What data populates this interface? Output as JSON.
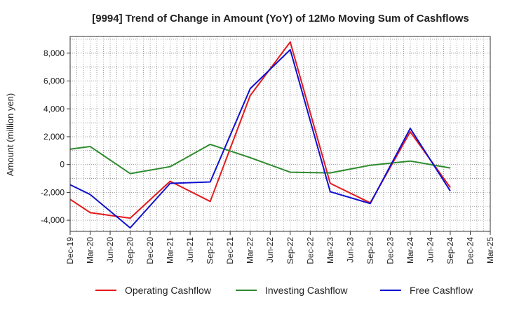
{
  "chart_data": {
    "type": "line",
    "title": "[9994]  Trend of Change in Amount (YoY) of 12Mo Moving Sum of Cashflows",
    "xlabel": "",
    "ylabel": "Amount (million yen)",
    "categories": [
      "Dec-19",
      "Mar-20",
      "Jun-20",
      "Sep-20",
      "Dec-20",
      "Mar-21",
      "Jun-21",
      "Sep-21",
      "Dec-21",
      "Mar-22",
      "Jun-22",
      "Sep-22",
      "Dec-22",
      "Mar-23",
      "Jun-23",
      "Sep-23",
      "Dec-23",
      "Mar-24",
      "Jun-24",
      "Sep-24",
      "Dec-24",
      "Mar-25"
    ],
    "ylim": [
      -4800,
      9200
    ],
    "yticks": [
      -4000,
      -2000,
      0,
      2000,
      4000,
      6000,
      8000
    ],
    "ytick_labels": [
      "-4,000",
      "-2,000",
      "0",
      "2,000",
      "4,000",
      "6,000",
      "8,000"
    ],
    "grid": true,
    "legend_position": "bottom",
    "series": [
      {
        "name": "Operating Cashflow",
        "color": "#e41a1c",
        "values": [
          -2500,
          -3450,
          -3650,
          -3850,
          null,
          -1200,
          null,
          -2650,
          null,
          4950,
          null,
          8800,
          null,
          -1350,
          null,
          -2750,
          null,
          2350,
          null,
          -1650,
          null,
          null
        ]
      },
      {
        "name": "Investing Cashflow",
        "color": "#2e8b2e",
        "values": [
          1100,
          1300,
          null,
          -650,
          null,
          -150,
          null,
          1450,
          null,
          500,
          null,
          -550,
          null,
          -600,
          null,
          -50,
          null,
          250,
          null,
          -250,
          null,
          null
        ]
      },
      {
        "name": "Free Cashflow",
        "color": "#1010d0",
        "values": [
          -1450,
          -2150,
          null,
          -4550,
          null,
          -1350,
          null,
          -1250,
          null,
          5450,
          null,
          8250,
          null,
          -1950,
          null,
          -2800,
          null,
          2600,
          null,
          -1900,
          null,
          null
        ]
      }
    ]
  }
}
